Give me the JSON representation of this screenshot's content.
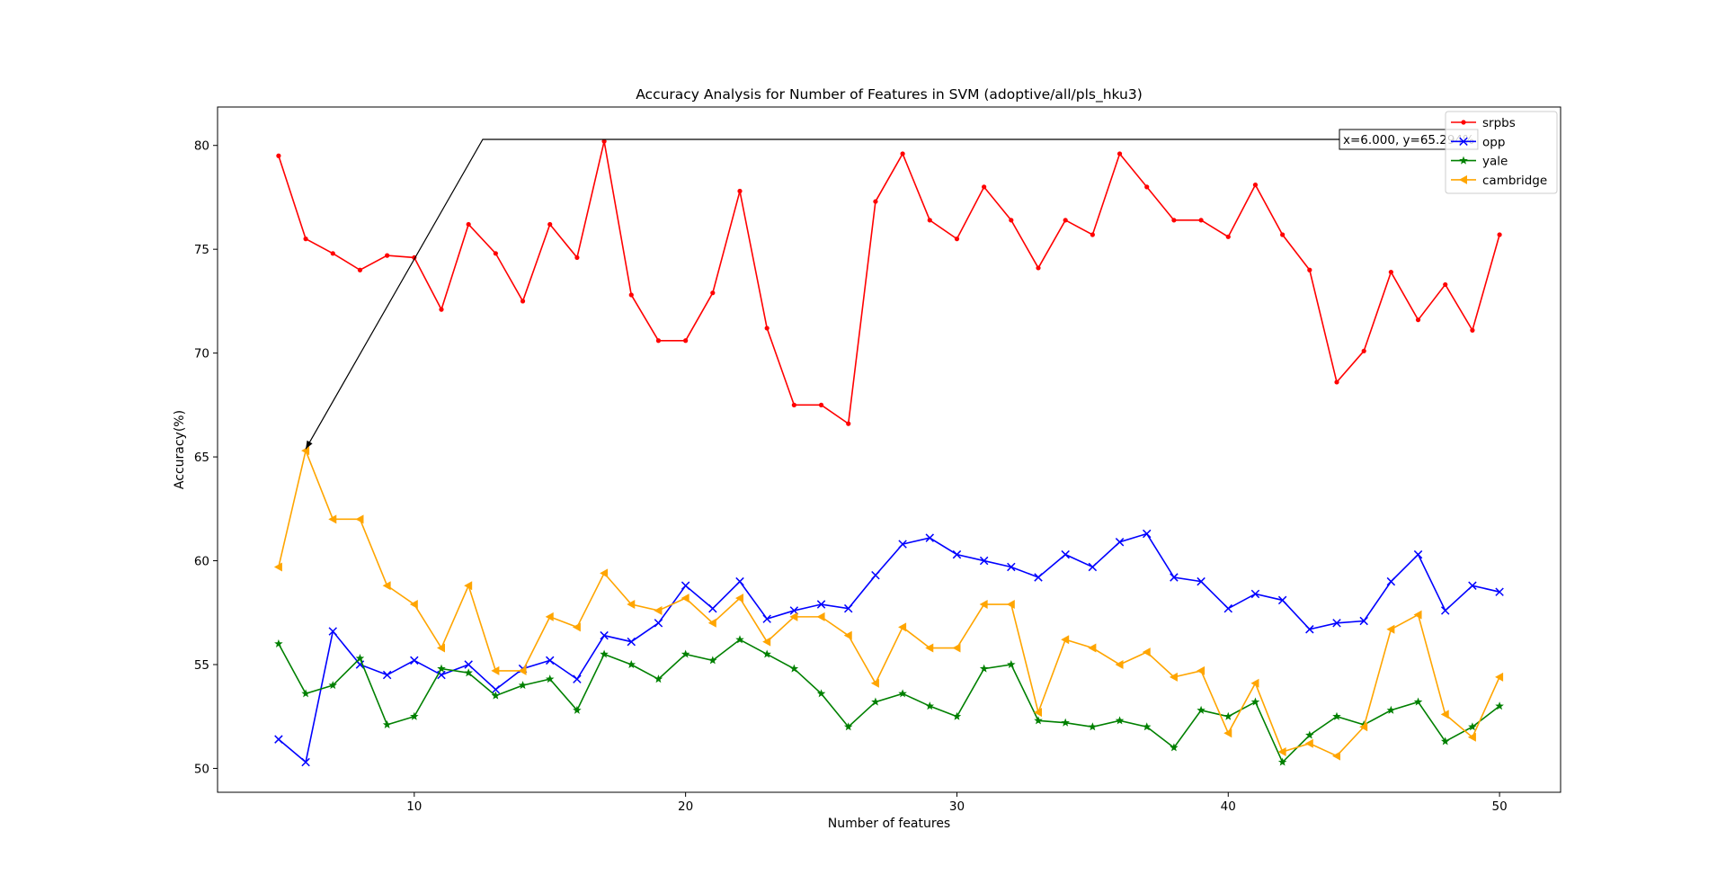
{
  "chart_data": {
    "type": "line",
    "title": "Accuracy Analysis for Number of Features in SVM (adoptive/all/pls_hku3)",
    "xlabel": "Number of features",
    "ylabel": "Accuracy(%)",
    "xlim": [
      2.75,
      52.25
    ],
    "ylim": [
      48.85,
      81.85
    ],
    "xticks": [
      10,
      20,
      30,
      40,
      50
    ],
    "yticks": [
      50,
      55,
      60,
      65,
      70,
      75,
      80
    ],
    "xtick_labels": [
      "10",
      "20",
      "30",
      "40",
      "50"
    ],
    "ytick_labels": [
      "50",
      "55",
      "60",
      "65",
      "70",
      "75",
      "80"
    ],
    "grid": false,
    "legend_position": "top-right",
    "x": [
      5,
      6,
      7,
      8,
      9,
      10,
      11,
      12,
      13,
      14,
      15,
      16,
      17,
      18,
      19,
      20,
      21,
      22,
      23,
      24,
      25,
      26,
      27,
      28,
      29,
      30,
      31,
      32,
      33,
      34,
      35,
      36,
      37,
      38,
      39,
      40,
      41,
      42,
      43,
      44,
      45,
      46,
      47,
      48,
      49,
      50
    ],
    "series": [
      {
        "name": "srpbs",
        "color": "#ff0000",
        "marker": "point",
        "values": [
          79.5,
          75.5,
          74.8,
          74.0,
          74.7,
          74.6,
          72.1,
          76.2,
          74.8,
          72.5,
          76.2,
          74.6,
          80.2,
          72.8,
          70.6,
          70.6,
          72.9,
          77.8,
          71.2,
          67.5,
          67.5,
          66.6,
          77.3,
          79.6,
          76.4,
          75.5,
          78.0,
          76.4,
          74.1,
          76.4,
          75.7,
          79.6,
          78.0,
          76.4,
          76.4,
          75.6,
          78.1,
          75.7,
          74.0,
          68.6,
          70.1,
          73.9,
          71.6,
          73.3,
          71.1,
          75.7
        ]
      },
      {
        "name": "opp",
        "color": "#0000ff",
        "marker": "x",
        "values": [
          51.4,
          50.3,
          56.6,
          55.0,
          54.5,
          55.2,
          54.5,
          55.0,
          53.8,
          54.8,
          55.2,
          54.3,
          56.4,
          56.1,
          57.0,
          58.8,
          57.7,
          59.0,
          57.2,
          57.6,
          57.9,
          57.7,
          59.3,
          60.8,
          61.1,
          60.3,
          60.0,
          59.7,
          59.2,
          60.3,
          59.7,
          60.9,
          61.3,
          59.2,
          59.0,
          57.7,
          58.4,
          58.1,
          56.7,
          57.0,
          57.1,
          59.0,
          60.3,
          57.6,
          58.8,
          58.5
        ]
      },
      {
        "name": "yale",
        "color": "#008000",
        "marker": "star",
        "values": [
          56.0,
          53.6,
          54.0,
          55.3,
          52.1,
          52.5,
          54.8,
          54.6,
          53.5,
          54.0,
          54.3,
          52.8,
          55.5,
          55.0,
          54.3,
          55.5,
          55.2,
          56.2,
          55.5,
          54.8,
          53.6,
          52.0,
          53.2,
          53.6,
          53.0,
          52.5,
          54.8,
          55.0,
          52.3,
          52.2,
          52.0,
          52.3,
          52.0,
          51.0,
          52.8,
          52.5,
          53.2,
          50.3,
          51.6,
          52.5,
          52.1,
          52.8,
          53.2,
          51.3,
          52.0,
          53.0
        ]
      },
      {
        "name": "cambridge",
        "color": "#ffa500",
        "marker": "triangle-left",
        "values": [
          59.7,
          65.3,
          62.0,
          62.0,
          58.8,
          57.9,
          55.8,
          58.8,
          54.7,
          54.7,
          57.3,
          56.8,
          59.4,
          57.9,
          57.6,
          58.2,
          57.0,
          58.2,
          56.1,
          57.3,
          57.3,
          56.4,
          54.1,
          56.8,
          55.8,
          55.8,
          57.9,
          57.9,
          52.7,
          56.2,
          55.8,
          55.0,
          55.6,
          54.4,
          54.7,
          51.7,
          54.1,
          50.8,
          51.2,
          50.6,
          52.0,
          56.7,
          57.4,
          52.6,
          51.5,
          54.4
        ]
      }
    ],
    "annotation": {
      "text": "x=6.000, y=65.294%",
      "point_x": 6,
      "point_y": 65.294
    }
  }
}
